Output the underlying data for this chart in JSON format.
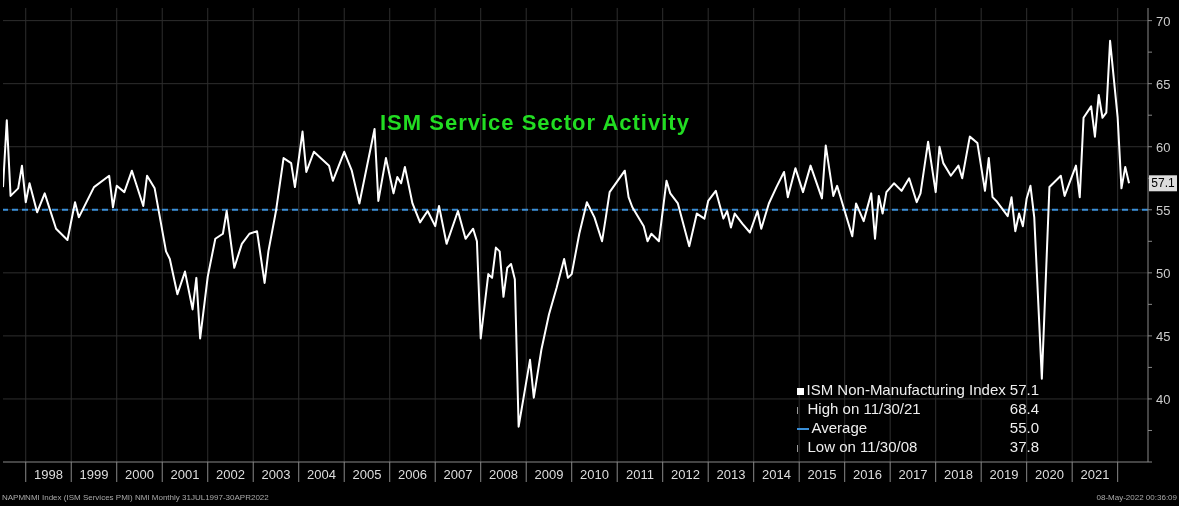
{
  "chart_data": {
    "type": "line",
    "title": "ISM Service Sector Activity",
    "series": [
      {
        "name": "ISM Non-Manufacturing Index",
        "color": "#ffffff",
        "x": [
          "1997-07",
          "1997-08",
          "1997-09",
          "1997-11",
          "1997-12",
          "1998-01",
          "1998-02",
          "1998-04",
          "1998-06",
          "1998-09",
          "1998-12",
          "1999-02",
          "1999-03",
          "1999-07",
          "1999-11",
          "1999-12",
          "2000-01",
          "2000-03",
          "2000-05",
          "2000-08",
          "2000-09",
          "2000-11",
          "2001-02",
          "2001-03",
          "2001-05",
          "2001-07",
          "2001-09",
          "2001-10",
          "2001-11",
          "2002-01",
          "2002-03",
          "2002-05",
          "2002-06",
          "2002-08",
          "2002-10",
          "2002-12",
          "2003-02",
          "2003-04",
          "2003-05",
          "2003-07",
          "2003-09",
          "2003-11",
          "2003-12",
          "2004-02",
          "2004-03",
          "2004-05",
          "2004-09",
          "2004-10",
          "2005-01",
          "2005-03",
          "2005-05",
          "2005-09",
          "2005-10",
          "2005-12",
          "2006-02",
          "2006-03",
          "2006-04",
          "2006-05",
          "2006-07",
          "2006-09",
          "2006-11",
          "2007-01",
          "2007-02",
          "2007-04",
          "2007-07",
          "2007-09",
          "2007-11",
          "2007-12",
          "2008-01",
          "2008-03",
          "2008-04",
          "2008-05",
          "2008-06",
          "2008-07",
          "2008-08",
          "2008-09",
          "2008-10",
          "2008-11",
          "2009-02",
          "2009-03",
          "2009-05",
          "2009-07",
          "2009-09",
          "2009-11",
          "2009-12",
          "2010-01",
          "2010-03",
          "2010-05",
          "2010-07",
          "2010-09",
          "2010-10",
          "2010-11",
          "2011-03",
          "2011-04",
          "2011-05",
          "2011-08",
          "2011-09",
          "2011-10",
          "2011-12",
          "2012-02",
          "2012-03",
          "2012-05",
          "2012-08",
          "2012-10",
          "2012-12",
          "2013-01",
          "2013-03",
          "2013-05",
          "2013-06",
          "2013-07",
          "2013-08",
          "2013-10",
          "2013-12",
          "2014-02",
          "2014-03",
          "2014-05",
          "2014-07",
          "2014-09",
          "2014-10",
          "2014-12",
          "2015-02",
          "2015-04",
          "2015-07",
          "2015-08",
          "2015-10",
          "2015-11",
          "2016-03",
          "2016-04",
          "2016-06",
          "2016-08",
          "2016-09",
          "2016-10",
          "2016-11",
          "2016-12",
          "2017-02",
          "2017-04",
          "2017-06",
          "2017-08",
          "2017-09",
          "2017-11",
          "2018-01",
          "2018-02",
          "2018-03",
          "2018-05",
          "2018-07",
          "2018-08",
          "2018-10",
          "2018-12",
          "2019-02",
          "2019-03",
          "2019-04",
          "2019-05",
          "2019-08",
          "2019-09",
          "2019-10",
          "2019-11",
          "2019-12",
          "2020-01",
          "2020-02",
          "2020-03",
          "2020-05",
          "2020-07",
          "2020-10",
          "2020-11",
          "2021-02",
          "2021-03",
          "2021-04",
          "2021-06",
          "2021-07",
          "2021-08",
          "2021-09",
          "2021-10",
          "2021-11",
          "2022-01",
          "2022-02",
          "2022-03",
          "2022-04"
        ],
        "values": [
          56.8,
          62.1,
          56.1,
          56.7,
          58.5,
          55.6,
          57.1,
          54.8,
          56.3,
          53.5,
          52.6,
          55.6,
          54.4,
          56.8,
          57.7,
          55.2,
          56.9,
          56.4,
          58.1,
          55.3,
          57.7,
          56.7,
          51.7,
          51.1,
          48.3,
          50.1,
          47.1,
          49.6,
          44.8,
          49.7,
          52.7,
          53.1,
          54.9,
          50.4,
          52.3,
          53.1,
          53.3,
          49.2,
          51.7,
          54.9,
          59.1,
          58.7,
          56.8,
          61.2,
          58.0,
          59.6,
          58.5,
          57.3,
          59.6,
          58.1,
          55.5,
          61.4,
          55.7,
          59.1,
          56.3,
          57.6,
          57.1,
          58.4,
          55.5,
          54.0,
          54.9,
          53.7,
          55.3,
          52.3,
          54.9,
          52.7,
          53.5,
          52.5,
          44.8,
          49.9,
          49.6,
          52.0,
          51.7,
          48.1,
          50.4,
          50.7,
          49.5,
          37.8,
          43.1,
          40.1,
          43.9,
          46.7,
          48.8,
          51.1,
          49.6,
          49.9,
          53.1,
          55.6,
          54.4,
          52.5,
          54.4,
          56.4,
          58.1,
          56.0,
          55.2,
          53.7,
          52.5,
          53.1,
          52.5,
          57.3,
          56.3,
          55.5,
          52.1,
          54.7,
          54.3,
          55.7,
          56.5,
          54.3,
          54.9,
          53.6,
          54.7,
          53.9,
          53.2,
          54.9,
          53.5,
          55.5,
          56.8,
          58.0,
          56.0,
          58.3,
          56.4,
          58.5,
          55.9,
          60.1,
          56.1,
          56.9,
          52.9,
          55.5,
          54.1,
          56.3,
          52.7,
          56.1,
          54.7,
          56.4,
          57.1,
          56.5,
          57.5,
          55.6,
          56.3,
          60.4,
          56.4,
          60.0,
          58.7,
          57.7,
          58.5,
          57.5,
          60.8,
          60.3,
          56.5,
          59.1,
          56.0,
          55.7,
          54.5,
          56.0,
          53.3,
          54.7,
          53.7,
          55.9,
          56.9,
          54.4,
          41.6,
          56.8,
          57.7,
          56.1,
          58.5,
          56.0,
          62.3,
          63.2,
          60.8,
          64.1,
          62.3,
          62.7,
          68.4,
          62.3,
          56.7,
          58.4,
          57.1
        ]
      }
    ],
    "xlim": [
      "1997-07",
      "2022-09"
    ],
    "xticks": [
      {
        "value": "1998-01",
        "label": null
      },
      {
        "value": "1998-07",
        "label": "1998"
      },
      {
        "value": "1999-01",
        "label": null
      },
      {
        "value": "1999-07",
        "label": "1999"
      },
      {
        "value": "2000-01",
        "label": null
      },
      {
        "value": "2000-07",
        "label": "2000"
      },
      {
        "value": "2001-01",
        "label": null
      },
      {
        "value": "2001-07",
        "label": "2001"
      },
      {
        "value": "2002-01",
        "label": null
      },
      {
        "value": "2002-07",
        "label": "2002"
      },
      {
        "value": "2003-01",
        "label": null
      },
      {
        "value": "2003-07",
        "label": "2003"
      },
      {
        "value": "2004-01",
        "label": null
      },
      {
        "value": "2004-07",
        "label": "2004"
      },
      {
        "value": "2005-01",
        "label": null
      },
      {
        "value": "2005-07",
        "label": "2005"
      },
      {
        "value": "2006-01",
        "label": null
      },
      {
        "value": "2006-07",
        "label": "2006"
      },
      {
        "value": "2007-01",
        "label": null
      },
      {
        "value": "2007-07",
        "label": "2007"
      },
      {
        "value": "2008-01",
        "label": null
      },
      {
        "value": "2008-07",
        "label": "2008"
      },
      {
        "value": "2009-01",
        "label": null
      },
      {
        "value": "2009-07",
        "label": "2009"
      },
      {
        "value": "2010-01",
        "label": null
      },
      {
        "value": "2010-07",
        "label": "2010"
      },
      {
        "value": "2011-01",
        "label": null
      },
      {
        "value": "2011-07",
        "label": "2011"
      },
      {
        "value": "2012-01",
        "label": null
      },
      {
        "value": "2012-07",
        "label": "2012"
      },
      {
        "value": "2013-01",
        "label": null
      },
      {
        "value": "2013-07",
        "label": "2013"
      },
      {
        "value": "2014-01",
        "label": null
      },
      {
        "value": "2014-07",
        "label": "2014"
      },
      {
        "value": "2015-01",
        "label": null
      },
      {
        "value": "2015-07",
        "label": "2015"
      },
      {
        "value": "2016-01",
        "label": null
      },
      {
        "value": "2016-07",
        "label": "2016"
      },
      {
        "value": "2017-01",
        "label": null
      },
      {
        "value": "2017-07",
        "label": "2017"
      },
      {
        "value": "2018-01",
        "label": null
      },
      {
        "value": "2018-07",
        "label": "2018"
      },
      {
        "value": "2019-01",
        "label": null
      },
      {
        "value": "2019-07",
        "label": "2019"
      },
      {
        "value": "2020-01",
        "label": null
      },
      {
        "value": "2020-07",
        "label": "2020"
      },
      {
        "value": "2021-01",
        "label": null
      },
      {
        "value": "2021-07",
        "label": "2021"
      },
      {
        "value": "2022-01",
        "label": null
      }
    ],
    "ylim": [
      35,
      71
    ],
    "yticks": [
      {
        "value": 35,
        "label": null
      },
      {
        "value": 37.5,
        "label": null
      },
      40,
      {
        "value": 42.5,
        "label": null
      },
      45,
      {
        "value": 47.5,
        "label": null
      },
      50,
      {
        "value": 52.5,
        "label": null
      },
      55,
      {
        "value": 57.5,
        "label": null
      },
      60,
      {
        "value": 62.5,
        "label": null
      },
      65,
      {
        "value": 67.5,
        "label": null
      },
      70
    ],
    "grid": true,
    "legend": "bottom right",
    "marker": "none",
    "line_style": "solid",
    "ref_lines": [
      {
        "axis": "y",
        "value": 55.0,
        "label": "Average",
        "color": "#3a8fd8",
        "line_style": "dashed"
      }
    ],
    "annotations": [
      {
        "text": "57.1",
        "x": "2022-04",
        "y": 57.1
      },
      "57.1",
      "High on 11/30/21",
      "68.4",
      "55.0",
      "Low on 11/30/08",
      "37.8",
      "NAPMNMI Index (ISM Services PMI) NMI Monthly 31JUL1997-30APR2022",
      "08-May-2022 00:36:09"
    ]
  }
}
